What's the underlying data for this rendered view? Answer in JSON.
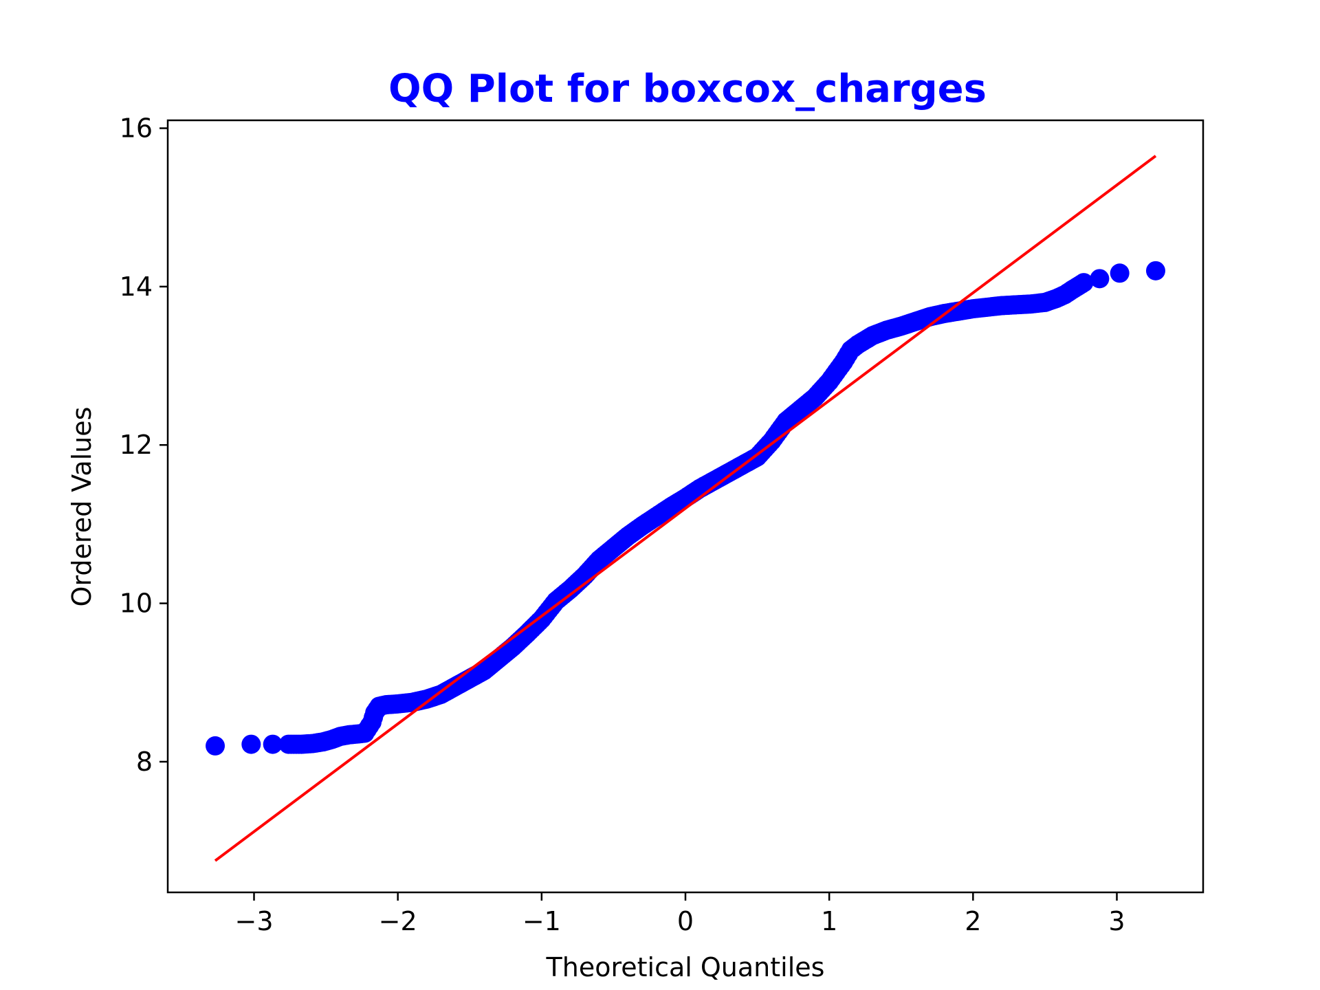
{
  "chart_data": {
    "type": "scatter",
    "title": "QQ Plot for boxcox_charges",
    "title_color": "#0000ff",
    "xlabel": "Theoretical Quantiles",
    "ylabel": "Ordered Values",
    "xlim": [
      -3.6,
      3.6
    ],
    "ylim": [
      6.35,
      16.1
    ],
    "xticks": [
      -3,
      -2,
      -1,
      0,
      1,
      2,
      3
    ],
    "xtick_labels": [
      "−3",
      "−2",
      "−1",
      "0",
      "1",
      "2",
      "3"
    ],
    "yticks": [
      8,
      10,
      12,
      14,
      16
    ],
    "ytick_labels": [
      "8",
      "10",
      "12",
      "14",
      "16"
    ],
    "grid": false,
    "series": [
      {
        "kind": "points",
        "color": "#0000ff",
        "x": [
          -3.27,
          -3.02,
          -2.87,
          -2.76,
          -2.67,
          -2.59,
          -2.52,
          -2.46,
          -2.4,
          -2.34,
          -2.28,
          -2.23,
          -2.18,
          -2.16,
          -2.13,
          -2.08,
          -2.0,
          -1.9,
          -1.8,
          -1.7,
          -1.6,
          -1.5,
          -1.4,
          -1.3,
          -1.2,
          -1.1,
          -1.0,
          -0.9,
          -0.8,
          -0.7,
          -0.6,
          -0.5,
          -0.4,
          -0.3,
          -0.2,
          -0.1,
          0.0,
          0.1,
          0.2,
          0.3,
          0.4,
          0.5,
          0.6,
          0.7,
          0.8,
          0.9,
          1.0,
          1.1,
          1.15,
          1.2,
          1.3,
          1.4,
          1.5,
          1.6,
          1.7,
          1.8,
          1.9,
          2.0,
          2.1,
          2.2,
          2.3,
          2.4,
          2.5,
          2.58,
          2.64,
          2.69,
          2.77,
          2.88,
          3.02,
          3.27
        ],
        "y": [
          8.2,
          8.22,
          8.22,
          8.22,
          8.22,
          8.23,
          8.25,
          8.28,
          8.32,
          8.34,
          8.35,
          8.36,
          8.5,
          8.62,
          8.7,
          8.72,
          8.73,
          8.75,
          8.79,
          8.85,
          8.95,
          9.05,
          9.15,
          9.3,
          9.45,
          9.62,
          9.8,
          10.03,
          10.18,
          10.35,
          10.55,
          10.7,
          10.85,
          10.98,
          11.1,
          11.22,
          11.33,
          11.45,
          11.55,
          11.65,
          11.75,
          11.85,
          12.05,
          12.3,
          12.45,
          12.6,
          12.8,
          13.05,
          13.2,
          13.27,
          13.38,
          13.45,
          13.5,
          13.56,
          13.62,
          13.66,
          13.69,
          13.72,
          13.74,
          13.76,
          13.77,
          13.78,
          13.8,
          13.85,
          13.9,
          13.96,
          14.05,
          14.1,
          14.17,
          14.2
        ]
      },
      {
        "kind": "fit-line",
        "color": "#ff0000",
        "x": [
          -3.27,
          3.27
        ],
        "y": [
          6.75,
          15.65
        ]
      }
    ]
  }
}
